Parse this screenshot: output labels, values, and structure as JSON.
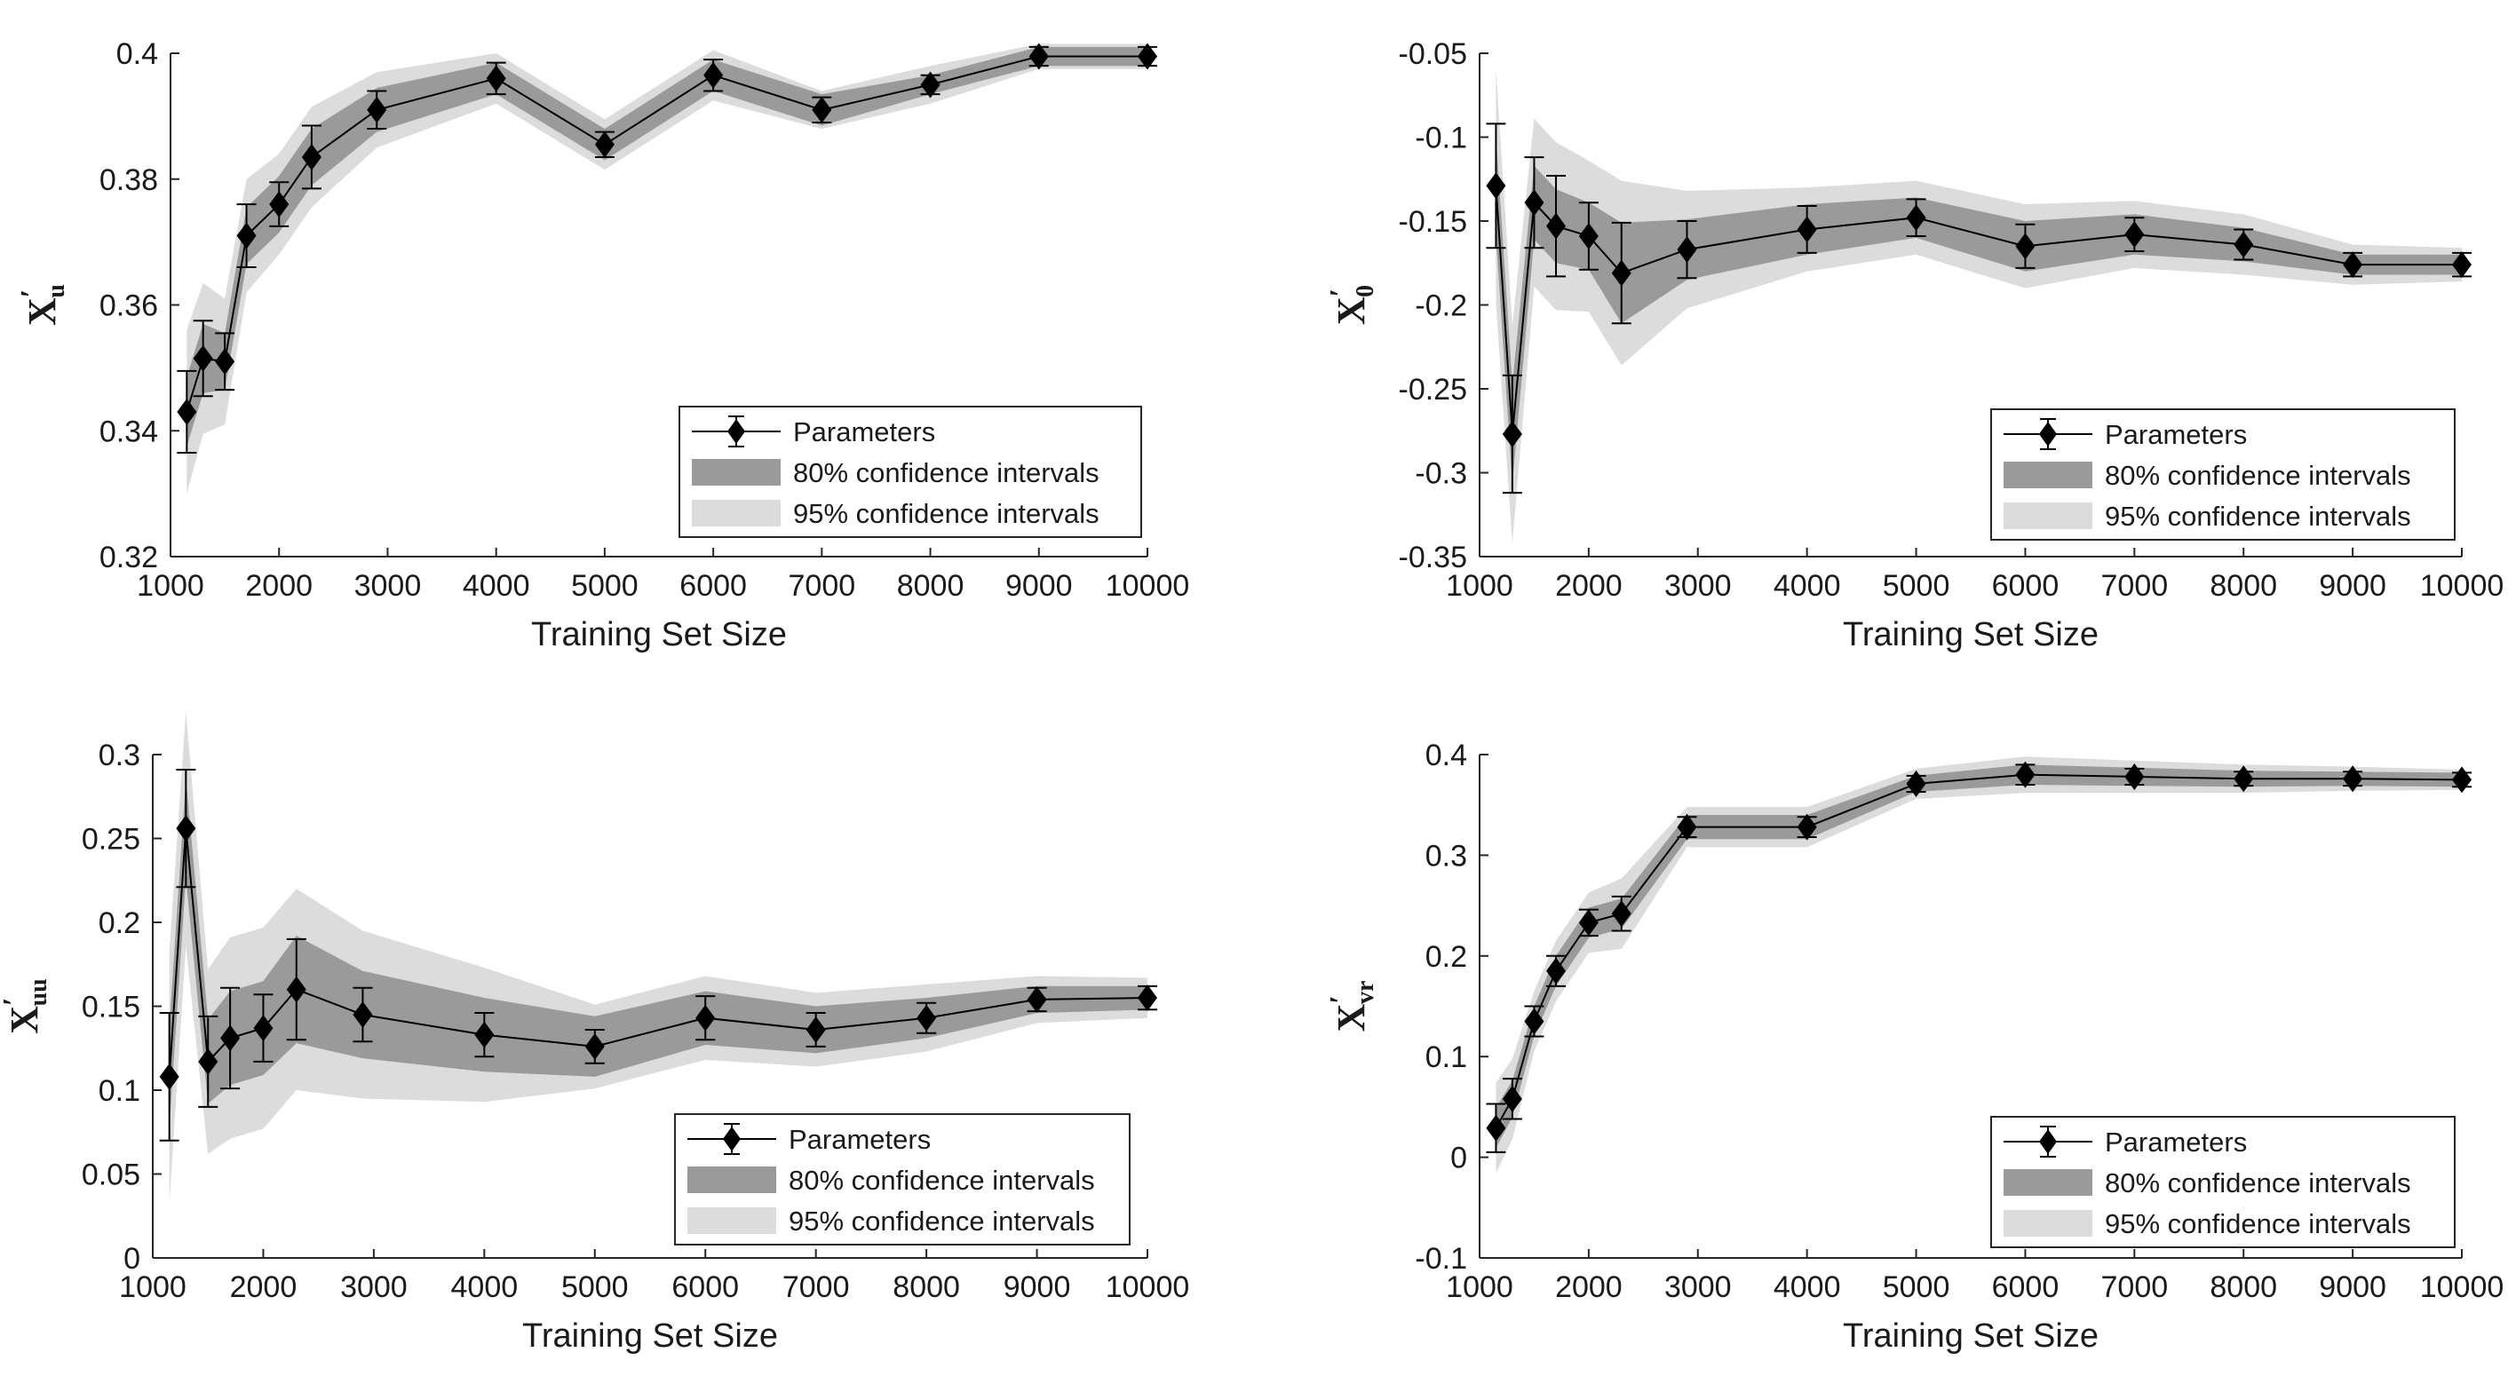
{
  "colors": {
    "ci80": "#9a9a9a",
    "ci95": "#dcdcdc",
    "line": "#000000",
    "axis": "#262626"
  },
  "legend": {
    "parameters": "Parameters",
    "ci80": "80% confidence intervals",
    "ci95": "95% confidence intervals"
  },
  "chart_data": [
    {
      "type": "line",
      "title": "",
      "xlabel": "Training Set Size",
      "ylabel": {
        "base": "X",
        "prime": "′",
        "sub": "u"
      },
      "xlim": [
        1000,
        10000
      ],
      "ylim": [
        0.32,
        0.4
      ],
      "xticks": [
        1000,
        2000,
        3000,
        4000,
        5000,
        6000,
        7000,
        8000,
        9000,
        10000
      ],
      "yticks": [
        "0.32",
        "0.34",
        "0.36",
        "0.38",
        "0.4"
      ],
      "legend_position": "bottom-right",
      "x": [
        1150,
        1300,
        1500,
        1700,
        2000,
        2300,
        2900,
        4000,
        5000,
        6000,
        7000,
        8000,
        9000,
        10000
      ],
      "series": [
        {
          "name": "Parameters",
          "values": [
            0.343,
            0.3515,
            0.351,
            0.371,
            0.376,
            0.3835,
            0.391,
            0.396,
            0.3855,
            0.3965,
            0.391,
            0.395,
            0.3995,
            0.3995
          ]
        }
      ],
      "error_bars": [
        0.0065,
        0.006,
        0.0045,
        0.005,
        0.0035,
        0.005,
        0.003,
        0.0025,
        0.002,
        0.0025,
        0.002,
        0.0015,
        0.0015,
        0.0015
      ],
      "ci80": [
        0.0055,
        0.0055,
        0.0045,
        0.0045,
        0.0045,
        0.0045,
        0.0035,
        0.0025,
        0.0025,
        0.0025,
        0.0025,
        0.0015,
        0.0015,
        0.0015
      ],
      "ci95": [
        0.013,
        0.012,
        0.01,
        0.009,
        0.008,
        0.008,
        0.006,
        0.004,
        0.004,
        0.004,
        0.003,
        0.003,
        0.002,
        0.002
      ]
    },
    {
      "type": "line",
      "title": "",
      "xlabel": "Training Set Size",
      "ylabel": {
        "base": "X",
        "prime": "′",
        "sub": "0"
      },
      "xlim": [
        1000,
        10000
      ],
      "ylim": [
        -0.35,
        -0.05
      ],
      "xticks": [
        1000,
        2000,
        3000,
        4000,
        5000,
        6000,
        7000,
        8000,
        9000,
        10000
      ],
      "yticks": [
        "-0.35",
        "-0.3",
        "-0.25",
        "-0.2",
        "-0.15",
        "-0.1",
        "-0.05"
      ],
      "legend_position": "bottom-right",
      "x": [
        1150,
        1300,
        1500,
        1700,
        2000,
        2300,
        2900,
        4000,
        5000,
        6000,
        7000,
        8000,
        9000,
        10000
      ],
      "series": [
        {
          "name": "Parameters",
          "values": [
            -0.129,
            -0.277,
            -0.139,
            -0.153,
            -0.159,
            -0.181,
            -0.167,
            -0.155,
            -0.148,
            -0.165,
            -0.158,
            -0.164,
            -0.176,
            -0.176
          ]
        }
      ],
      "error_bars": [
        0.037,
        0.035,
        0.027,
        0.03,
        0.02,
        0.03,
        0.017,
        0.014,
        0.011,
        0.013,
        0.01,
        0.009,
        0.007,
        0.007
      ],
      "ci80": [
        0.03,
        0.03,
        0.022,
        0.022,
        0.02,
        0.03,
        0.018,
        0.015,
        0.012,
        0.015,
        0.012,
        0.01,
        0.006,
        0.006
      ],
      "ci95": [
        0.07,
        0.065,
        0.05,
        0.05,
        0.045,
        0.055,
        0.035,
        0.025,
        0.022,
        0.025,
        0.02,
        0.018,
        0.012,
        0.01
      ]
    },
    {
      "type": "line",
      "title": "",
      "xlabel": "Training Set Size",
      "ylabel": {
        "base": "X",
        "prime": "′",
        "sub": "uu"
      },
      "xlim": [
        1000,
        10000
      ],
      "ylim": [
        0,
        0.3
      ],
      "xticks": [
        1000,
        2000,
        3000,
        4000,
        5000,
        6000,
        7000,
        8000,
        9000,
        10000
      ],
      "yticks": [
        "0",
        "0.05",
        "0.1",
        "0.15",
        "0.2",
        "0.25",
        "0.3"
      ],
      "legend_position": "bottom-right",
      "x": [
        1150,
        1300,
        1500,
        1700,
        2000,
        2300,
        2900,
        4000,
        5000,
        6000,
        7000,
        8000,
        9000,
        10000
      ],
      "series": [
        {
          "name": "Parameters",
          "values": [
            0.108,
            0.256,
            0.117,
            0.131,
            0.137,
            0.16,
            0.145,
            0.133,
            0.126,
            0.143,
            0.136,
            0.143,
            0.154,
            0.155
          ]
        }
      ],
      "error_bars": [
        0.038,
        0.035,
        0.027,
        0.03,
        0.02,
        0.03,
        0.016,
        0.013,
        0.01,
        0.013,
        0.01,
        0.009,
        0.007,
        0.007
      ],
      "ci80": [
        0.03,
        0.03,
        0.025,
        0.028,
        0.028,
        0.032,
        0.026,
        0.022,
        0.018,
        0.016,
        0.014,
        0.012,
        0.008,
        0.007
      ],
      "ci95": [
        0.075,
        0.07,
        0.055,
        0.06,
        0.06,
        0.06,
        0.05,
        0.04,
        0.025,
        0.025,
        0.022,
        0.02,
        0.014,
        0.012
      ]
    },
    {
      "type": "line",
      "title": "",
      "xlabel": "Training Set Size",
      "ylabel": {
        "base": "X",
        "prime": "′",
        "sub": "vr"
      },
      "xlim": [
        1000,
        10000
      ],
      "ylim": [
        -0.1,
        0.4
      ],
      "xticks": [
        1000,
        2000,
        3000,
        4000,
        5000,
        6000,
        7000,
        8000,
        9000,
        10000
      ],
      "yticks": [
        "-0.1",
        "0",
        "0.1",
        "0.2",
        "0.3",
        "0.4"
      ],
      "legend_position": "bottom-right",
      "x": [
        1150,
        1300,
        1500,
        1700,
        2000,
        2300,
        2900,
        4000,
        5000,
        6000,
        7000,
        8000,
        9000,
        10000
      ],
      "series": [
        {
          "name": "Parameters",
          "values": [
            0.029,
            0.058,
            0.135,
            0.185,
            0.233,
            0.242,
            0.328,
            0.328,
            0.371,
            0.38,
            0.378,
            0.376,
            0.376,
            0.375
          ]
        }
      ],
      "error_bars": [
        0.024,
        0.02,
        0.015,
        0.015,
        0.013,
        0.017,
        0.01,
        0.01,
        0.008,
        0.01,
        0.008,
        0.007,
        0.007,
        0.007
      ],
      "ci80": [
        0.02,
        0.018,
        0.015,
        0.015,
        0.015,
        0.015,
        0.012,
        0.012,
        0.008,
        0.01,
        0.009,
        0.008,
        0.007,
        0.007
      ],
      "ci95": [
        0.045,
        0.04,
        0.03,
        0.03,
        0.03,
        0.035,
        0.02,
        0.02,
        0.015,
        0.018,
        0.016,
        0.014,
        0.012,
        0.01
      ]
    }
  ]
}
